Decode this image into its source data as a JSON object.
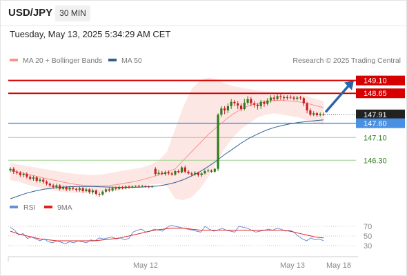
{
  "header": {
    "symbol": "USD/JPY",
    "timeframe": "30 MIN"
  },
  "timestamp": "Tuesday, May 13, 2025 5:34:29 AM CET",
  "legend": [
    {
      "label": "MA 20 + Bollinger Bands",
      "color": "#f4958e"
    },
    {
      "label": "MA 50",
      "color": "#2f5f96"
    }
  ],
  "copyright": "Research © 2025 Trading Central",
  "rsi_legend": [
    {
      "label": "RSI",
      "color": "#6b8fd6"
    },
    {
      "label": "9MA",
      "color": "#e02020"
    }
  ],
  "colors": {
    "up": "#2e7d1a",
    "down": "#c62020",
    "resistance": "#d60000",
    "pivot": "#4a90e2",
    "support": "#9bd08a",
    "arrow": "#2a64a8"
  },
  "chart_data": [
    {
      "type": "candlestick",
      "ylim": [
        145.0,
        149.6
      ],
      "x_tick_labels": [
        "May 12",
        "May 13",
        "May 18"
      ],
      "price_levels": [
        {
          "label": "149.10",
          "value": 149.1,
          "kind": "resistance"
        },
        {
          "label": "148.65",
          "value": 148.65,
          "kind": "resistance"
        },
        {
          "label": "147.91",
          "value": 147.91,
          "kind": "last-price"
        },
        {
          "label": "147.60",
          "value": 147.6,
          "kind": "pivot"
        },
        {
          "label": "147.10",
          "value": 147.1,
          "kind": "support"
        },
        {
          "label": "146.30",
          "value": 146.3,
          "kind": "support"
        }
      ],
      "candles": [
        [
          145.95,
          146.0,
          146.06,
          145.88
        ],
        [
          146.0,
          145.9,
          146.06,
          145.82
        ],
        [
          145.9,
          145.86,
          145.96,
          145.8
        ],
        [
          145.86,
          145.78,
          145.92,
          145.72
        ],
        [
          145.78,
          145.82,
          145.88,
          145.7
        ],
        [
          145.82,
          145.72,
          145.88,
          145.66
        ],
        [
          145.72,
          145.65,
          145.78,
          145.6
        ],
        [
          145.65,
          145.7,
          145.76,
          145.58
        ],
        [
          145.7,
          145.58,
          145.74,
          145.52
        ],
        [
          145.58,
          145.62,
          145.68,
          145.52
        ],
        [
          145.62,
          145.55,
          145.68,
          145.48
        ],
        [
          145.55,
          145.48,
          145.6,
          145.42
        ],
        [
          145.48,
          145.42,
          145.52,
          145.36
        ],
        [
          145.42,
          145.36,
          145.48,
          145.3
        ],
        [
          145.36,
          145.42,
          145.48,
          145.3
        ],
        [
          145.42,
          145.3,
          145.46,
          145.24
        ],
        [
          145.3,
          145.36,
          145.42,
          145.26
        ],
        [
          145.36,
          145.28,
          145.4,
          145.22
        ],
        [
          145.28,
          145.34,
          145.4,
          145.22
        ],
        [
          145.34,
          145.3,
          145.38,
          145.24
        ],
        [
          145.3,
          145.26,
          145.34,
          145.2
        ],
        [
          145.26,
          145.32,
          145.38,
          145.2
        ],
        [
          145.32,
          145.22,
          145.36,
          145.16
        ],
        [
          145.22,
          145.28,
          145.34,
          145.18
        ],
        [
          145.28,
          145.18,
          145.32,
          145.12
        ],
        [
          145.18,
          145.24,
          145.3,
          145.1
        ],
        [
          145.24,
          145.12,
          145.28,
          145.06
        ],
        [
          145.12,
          145.1,
          145.18,
          145.02
        ],
        [
          145.1,
          145.2,
          145.24,
          145.06
        ],
        [
          145.2,
          145.28,
          145.32,
          145.16
        ],
        [
          145.28,
          145.24,
          145.34,
          145.18
        ],
        [
          145.24,
          145.32,
          145.38,
          145.2
        ],
        [
          145.32,
          145.3,
          145.38,
          145.24
        ],
        [
          145.3,
          145.36,
          145.42,
          145.26
        ],
        [
          145.36,
          145.32,
          145.4,
          145.28
        ],
        [
          145.32,
          145.38,
          145.42,
          145.28
        ],
        [
          145.38,
          145.35,
          145.42,
          145.3
        ],
        [
          145.35,
          145.38,
          145.42,
          145.32
        ],
        [
          145.38,
          145.4,
          145.42,
          145.34
        ],
        [
          145.4,
          145.38,
          145.44,
          145.34
        ],
        [
          145.38,
          145.4,
          145.44,
          145.36
        ],
        [
          145.4,
          145.38,
          145.42,
          145.34
        ],
        [
          145.38,
          145.36,
          145.42,
          145.32
        ],
        [
          145.36,
          145.38,
          145.42,
          145.34
        ],
        [
          146.0,
          145.82,
          146.06,
          145.76
        ],
        [
          145.82,
          145.86,
          145.96,
          145.78
        ],
        [
          145.86,
          145.82,
          145.92,
          145.78
        ],
        [
          145.82,
          145.88,
          145.94,
          145.76
        ],
        [
          145.88,
          145.84,
          145.94,
          145.78
        ],
        [
          145.84,
          145.8,
          145.9,
          145.76
        ],
        [
          145.8,
          145.92,
          145.96,
          145.76
        ],
        [
          145.92,
          145.88,
          145.98,
          145.84
        ],
        [
          145.88,
          146.05,
          146.1,
          145.84
        ],
        [
          146.05,
          145.9,
          146.12,
          145.84
        ],
        [
          145.9,
          145.84,
          145.96,
          145.8
        ],
        [
          145.84,
          145.8,
          145.9,
          145.74
        ],
        [
          145.8,
          145.86,
          145.92,
          145.76
        ],
        [
          145.86,
          145.78,
          145.9,
          145.72
        ],
        [
          145.78,
          145.84,
          145.88,
          145.72
        ],
        [
          145.84,
          145.92,
          145.98,
          145.8
        ],
        [
          145.92,
          145.94,
          146.0,
          145.88
        ],
        [
          145.94,
          145.9,
          145.98,
          145.86
        ],
        [
          145.9,
          146.0,
          146.04,
          145.86
        ],
        [
          146.0,
          147.9,
          147.95,
          145.92
        ],
        [
          147.9,
          148.12,
          148.2,
          147.82
        ],
        [
          148.12,
          148.05,
          148.2,
          147.92
        ],
        [
          148.05,
          148.2,
          148.3,
          147.95
        ],
        [
          148.2,
          148.35,
          148.45,
          148.1
        ],
        [
          148.35,
          148.3,
          148.42,
          148.2
        ],
        [
          148.3,
          148.22,
          148.38,
          148.1
        ],
        [
          148.22,
          148.1,
          148.3,
          148.02
        ],
        [
          148.1,
          148.32,
          148.45,
          148.05
        ],
        [
          148.32,
          148.45,
          148.55,
          148.25
        ],
        [
          148.45,
          148.3,
          148.52,
          148.2
        ],
        [
          148.3,
          148.25,
          148.38,
          148.15
        ],
        [
          148.25,
          148.2,
          148.3,
          148.08
        ],
        [
          148.2,
          148.35,
          148.42,
          148.1
        ],
        [
          148.35,
          148.28,
          148.4,
          148.18
        ],
        [
          148.28,
          148.4,
          148.48,
          148.22
        ],
        [
          148.4,
          148.5,
          148.58,
          148.32
        ],
        [
          148.5,
          148.45,
          148.58,
          148.38
        ],
        [
          148.45,
          148.55,
          148.62,
          148.4
        ],
        [
          148.55,
          148.52,
          148.62,
          148.42
        ],
        [
          148.52,
          148.48,
          148.58,
          148.4
        ],
        [
          148.48,
          148.52,
          148.58,
          148.42
        ],
        [
          148.52,
          148.5,
          148.58,
          148.44
        ],
        [
          148.5,
          148.46,
          148.56,
          148.4
        ],
        [
          148.46,
          148.5,
          148.56,
          148.4
        ],
        [
          148.5,
          148.48,
          148.56,
          148.42
        ],
        [
          148.48,
          148.3,
          148.52,
          148.2
        ],
        [
          148.3,
          148.05,
          148.35,
          147.95
        ],
        [
          148.05,
          147.9,
          148.12,
          147.85
        ],
        [
          147.9,
          147.95,
          148.02,
          147.85
        ],
        [
          147.95,
          147.88,
          148.0,
          147.82
        ],
        [
          147.88,
          147.92,
          147.98,
          147.84
        ],
        [
          147.92,
          147.91,
          147.98,
          147.86
        ]
      ],
      "ma20": [
        145.95,
        145.88,
        145.82,
        145.75,
        145.68,
        145.62,
        145.56,
        145.5,
        145.45,
        145.42,
        145.4,
        145.4,
        145.42,
        145.45,
        145.5,
        145.55,
        145.62,
        145.7,
        145.78,
        145.88,
        146.0,
        146.3,
        146.6,
        146.9,
        147.2,
        147.45,
        147.7,
        147.92,
        148.1,
        148.22,
        148.3,
        148.36,
        148.4,
        148.4,
        148.38,
        148.35,
        148.3,
        148.22,
        148.15
      ],
      "bb_upper": [
        146.2,
        146.15,
        146.1,
        146.05,
        146.0,
        145.95,
        145.9,
        145.86,
        145.82,
        145.8,
        145.78,
        145.8,
        145.85,
        145.9,
        145.95,
        146.0,
        146.05,
        146.15,
        146.3,
        146.6,
        147.4,
        148.2,
        148.8,
        149.1,
        149.2,
        149.15,
        149.0,
        148.9,
        148.85,
        148.8,
        148.75,
        148.72,
        148.7,
        148.7,
        148.68,
        148.62,
        148.55,
        148.45,
        148.38
      ],
      "bb_lower": [
        145.6,
        145.55,
        145.45,
        145.38,
        145.3,
        145.25,
        145.2,
        145.18,
        145.15,
        145.15,
        145.18,
        145.2,
        145.22,
        145.25,
        145.3,
        145.35,
        145.4,
        145.45,
        145.48,
        145.4,
        144.95,
        144.9,
        145.0,
        145.3,
        145.7,
        146.2,
        146.7,
        147.1,
        147.4,
        147.6,
        147.8,
        147.9,
        147.95,
        147.9,
        147.85,
        147.8,
        147.7,
        147.6,
        147.55
      ],
      "ma50": [
        144.95,
        145.05,
        145.15,
        145.22,
        145.28,
        145.32,
        145.35,
        145.37,
        145.38,
        145.38,
        145.38,
        145.37,
        145.36,
        145.35,
        145.35,
        145.35,
        145.36,
        145.38,
        145.4,
        145.45,
        145.52,
        145.62,
        145.75,
        145.9,
        146.08,
        146.28,
        146.5,
        146.7,
        146.9,
        147.08,
        147.22,
        147.35,
        147.45,
        147.52,
        147.58,
        147.63,
        147.66,
        147.69,
        147.72
      ],
      "forecast_arrow": {
        "from": 147.92,
        "to": 149.1
      }
    },
    {
      "type": "line",
      "ylim": [
        20,
        80
      ],
      "y_tick_labels": [
        "70",
        "50",
        "30"
      ],
      "series": [
        {
          "name": "RSI",
          "values": [
            68,
            62,
            52,
            55,
            45,
            48,
            44,
            40,
            44,
            38,
            36,
            40,
            37,
            34,
            38,
            36,
            40,
            38,
            36,
            42,
            40,
            46,
            44,
            46,
            48,
            44,
            46,
            42,
            45,
            58,
            62,
            64,
            58,
            60,
            64,
            62,
            60,
            68,
            72,
            70,
            68,
            66,
            64,
            62,
            60,
            58,
            70,
            64,
            60,
            62,
            66,
            62,
            60,
            58,
            70,
            68,
            66,
            62,
            58,
            60,
            62,
            64,
            62,
            66,
            64,
            60,
            62,
            58,
            50,
            44,
            40,
            46,
            42,
            44,
            40
          ]
        },
        {
          "name": "9MA",
          "values": [
            60,
            57,
            54,
            52,
            50,
            48,
            46,
            44,
            43,
            42,
            41,
            40,
            40,
            40,
            40,
            40,
            40,
            40,
            40,
            40,
            40,
            41,
            42,
            43,
            44,
            45,
            46,
            48,
            50,
            52,
            54,
            56,
            58,
            60,
            62,
            63,
            64,
            65,
            66,
            66,
            66,
            66,
            65,
            64,
            63,
            62,
            62,
            62,
            62,
            62,
            62,
            62,
            62,
            62,
            62,
            62,
            62,
            62,
            62,
            62,
            62,
            62,
            62,
            62,
            62,
            61,
            60,
            58,
            56,
            54,
            52,
            50,
            48,
            47,
            46
          ]
        }
      ]
    }
  ]
}
